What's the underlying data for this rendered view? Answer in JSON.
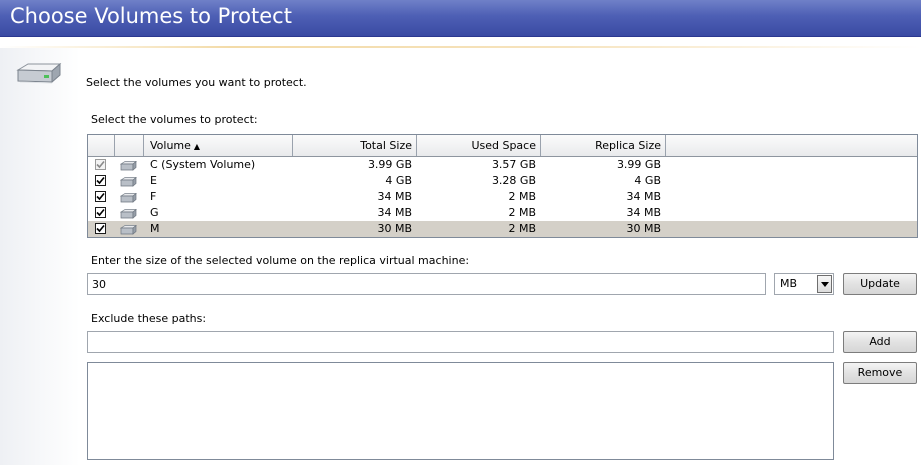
{
  "header": {
    "title": "Choose Volumes to Protect"
  },
  "intro": "Select the volumes you want to protect.",
  "volumes_section": {
    "label": "Select the volumes to protect:",
    "columns": {
      "volume": "Volume",
      "total_size": "Total Size",
      "used_space": "Used Space",
      "replica_size": "Replica Size"
    },
    "rows": [
      {
        "checked": true,
        "disabled": true,
        "volume": "C (System Volume)",
        "total_size": "3.99 GB",
        "used_space": "3.57 GB",
        "replica_size": "3.99 GB",
        "selected": false
      },
      {
        "checked": true,
        "disabled": false,
        "volume": "E",
        "total_size": "4 GB",
        "used_space": "3.28 GB",
        "replica_size": "4 GB",
        "selected": false
      },
      {
        "checked": true,
        "disabled": false,
        "volume": "F",
        "total_size": "34 MB",
        "used_space": "2 MB",
        "replica_size": "34 MB",
        "selected": false
      },
      {
        "checked": true,
        "disabled": false,
        "volume": "G",
        "total_size": "34 MB",
        "used_space": "2 MB",
        "replica_size": "34 MB",
        "selected": false
      },
      {
        "checked": true,
        "disabled": false,
        "volume": "M",
        "total_size": "30 MB",
        "used_space": "2 MB",
        "replica_size": "30 MB",
        "selected": true
      }
    ]
  },
  "size_section": {
    "label": "Enter the size of the selected volume on the replica virtual machine:",
    "value": "30",
    "unit": "MB",
    "update_label": "Update"
  },
  "exclude_section": {
    "label": "Exclude these paths:",
    "input_value": "",
    "add_label": "Add",
    "remove_label": "Remove",
    "paths": []
  },
  "icons": {
    "header_icon": "disk-drive-icon",
    "row_icon": "drive-icon"
  },
  "colors": {
    "header": "#4d5fb4",
    "selected_row": "#d4d0c8",
    "accent_line": "#f3dba8"
  }
}
